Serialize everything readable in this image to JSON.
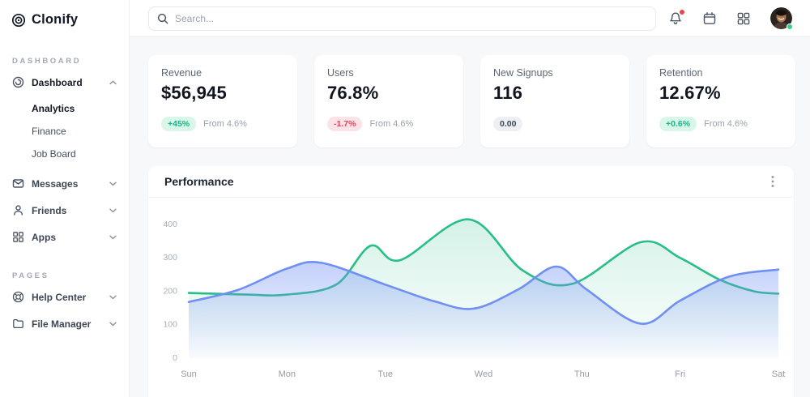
{
  "brand": {
    "name": "Clonify"
  },
  "topbar": {
    "search_placeholder": "Search..."
  },
  "sidebar": {
    "sections": [
      {
        "label": "DASHBOARD",
        "items": [
          {
            "label": "Dashboard",
            "icon": "dashboard-icon",
            "expanded": true,
            "children": [
              "Analytics",
              "Finance",
              "Job Board"
            ],
            "active_child": "Analytics"
          },
          {
            "label": "Messages",
            "icon": "messages-icon"
          },
          {
            "label": "Friends",
            "icon": "friends-icon"
          },
          {
            "label": "Apps",
            "icon": "apps-icon"
          }
        ]
      },
      {
        "label": "PAGES",
        "items": [
          {
            "label": "Help Center",
            "icon": "help-icon"
          },
          {
            "label": "File Manager",
            "icon": "folder-icon"
          }
        ]
      }
    ]
  },
  "stats": [
    {
      "title": "Revenue",
      "value": "$56,945",
      "badge": "+45%",
      "badge_type": "positive",
      "note": "From 4.6%"
    },
    {
      "title": "Users",
      "value": "76.8%",
      "badge": "-1.7%",
      "badge_type": "negative",
      "note": "From 4.6%"
    },
    {
      "title": "New Signups",
      "value": "116",
      "badge": "0.00",
      "badge_type": "neutral",
      "note": ""
    },
    {
      "title": "Retention",
      "value": "12.67%",
      "badge": "+0.6%",
      "badge_type": "positive",
      "note": "From 4.6%"
    }
  ],
  "performance": {
    "title": "Performance"
  },
  "chart_data": {
    "type": "area",
    "title": "Performance",
    "x_categories": [
      "Sun",
      "Mon",
      "Tue",
      "Wed",
      "Thu",
      "Fri",
      "Sat"
    ],
    "ylim": [
      0,
      400
    ],
    "yticks": [
      0,
      100,
      200,
      300,
      400
    ],
    "grid": false,
    "legend_position": "none",
    "colors": {
      "series1": "#29bd88",
      "series2": "#6f8ff3"
    },
    "series": [
      {
        "name": "series-green",
        "color": "#29bd88",
        "x": [
          0,
          0.6,
          1,
          1.5,
          1.85,
          2.15,
          2.85,
          3.4,
          3.9,
          4.6,
          5,
          5.4,
          5.75,
          6
        ],
        "values": [
          195,
          190,
          190,
          220,
          336,
          293,
          415,
          262,
          222,
          347,
          300,
          235,
          200,
          193
        ]
      },
      {
        "name": "series-blue",
        "color": "#6f8ff3",
        "x": [
          0,
          0.5,
          1,
          1.35,
          2,
          2.5,
          2.9,
          3.35,
          3.74,
          4.05,
          4.6,
          5,
          5.5,
          6
        ],
        "values": [
          168,
          204,
          268,
          285,
          220,
          170,
          148,
          205,
          274,
          205,
          103,
          172,
          244,
          265
        ]
      }
    ]
  }
}
